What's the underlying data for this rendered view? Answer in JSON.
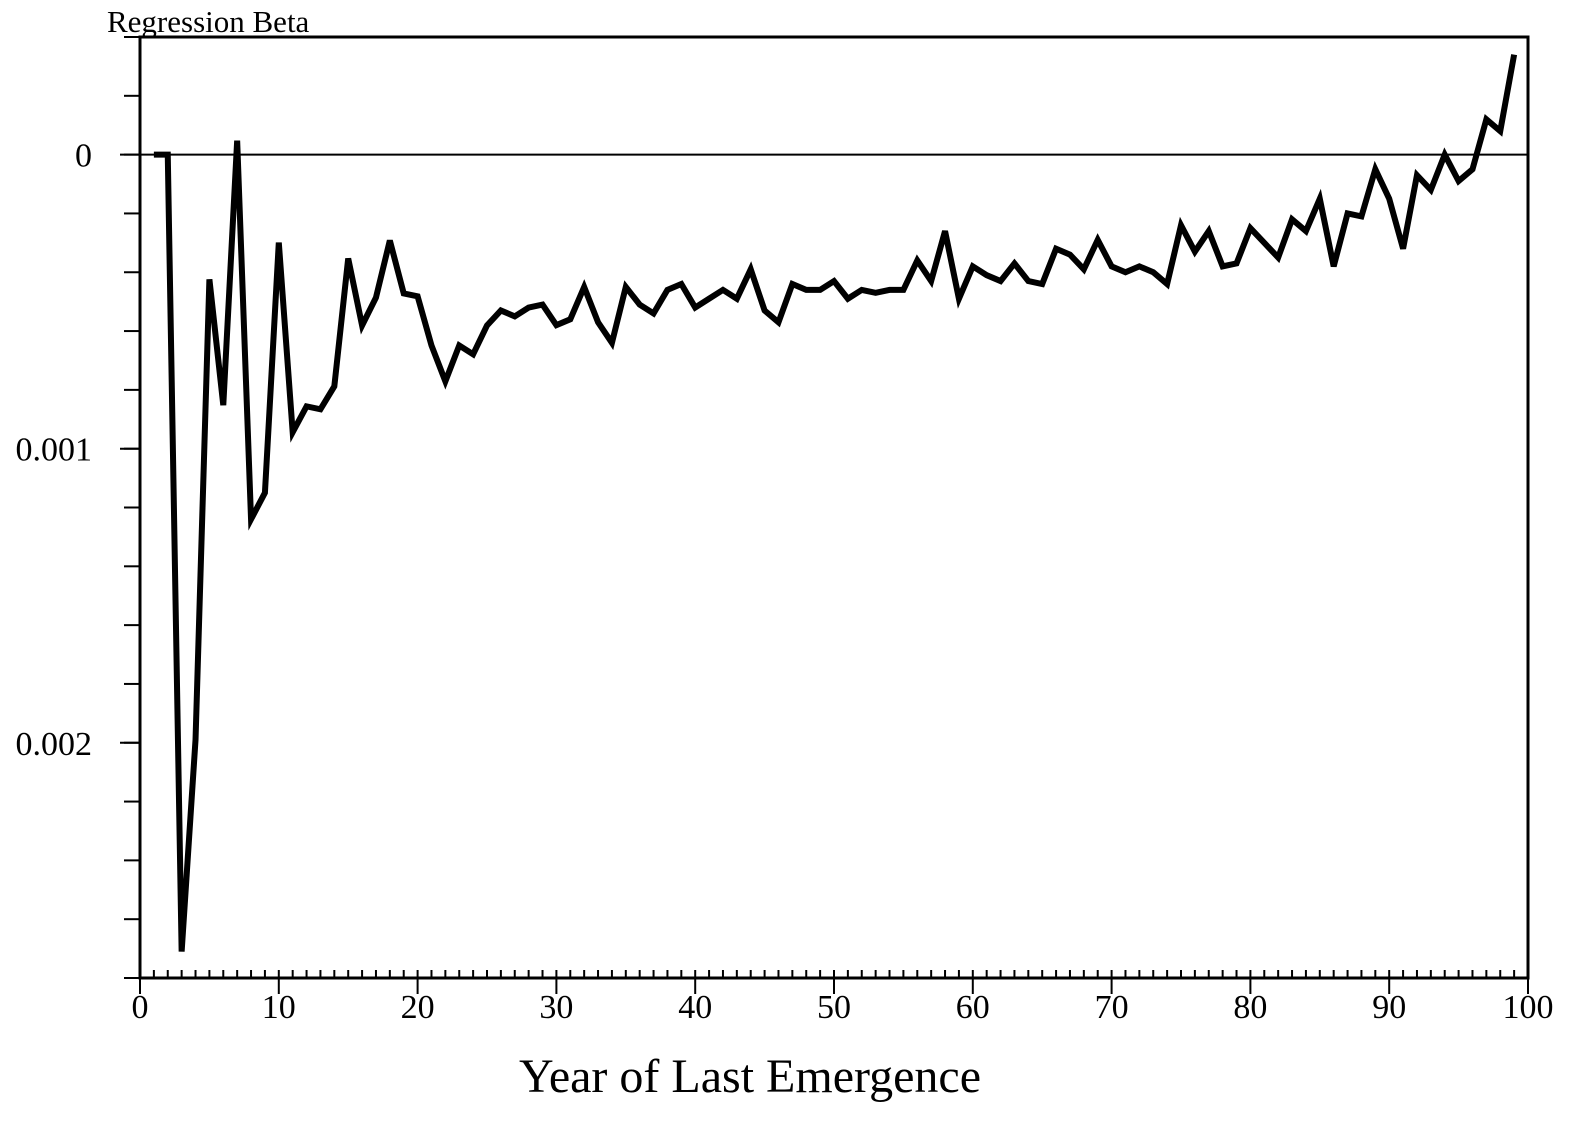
{
  "chart_data": {
    "type": "line",
    "y_axis_label": "Regression Beta",
    "x_axis_label": "Year of Last Emergence",
    "x": [
      1,
      2,
      3,
      4,
      5,
      6,
      7,
      8,
      9,
      10,
      11,
      12,
      13,
      14,
      15,
      16,
      17,
      18,
      19,
      20,
      21,
      22,
      23,
      24,
      25,
      26,
      27,
      28,
      29,
      30,
      31,
      32,
      33,
      34,
      35,
      36,
      37,
      38,
      39,
      40,
      41,
      42,
      43,
      44,
      45,
      46,
      47,
      48,
      49,
      50,
      51,
      52,
      53,
      54,
      55,
      56,
      57,
      58,
      59,
      60,
      61,
      62,
      63,
      64,
      65,
      66,
      67,
      68,
      69,
      70,
      71,
      72,
      73,
      74,
      75,
      76,
      77,
      78,
      79,
      80,
      81,
      82,
      83,
      84,
      85,
      86,
      87,
      88,
      89,
      90,
      91,
      92,
      93,
      94,
      95,
      96,
      97,
      98,
      99
    ],
    "series": [
      {
        "name": "Regression Beta",
        "color": "#000000",
        "values": [
          0,
          0,
          0.00271,
          0.00199,
          0.000424,
          0.000852,
          -4.75e-05,
          0.00124,
          0.00115,
          0.000299,
          0.000944,
          0.000856,
          0.000866,
          0.000788,
          0.000353,
          0.000581,
          0.000486,
          0.000292,
          0.000472,
          0.000482,
          0.000649,
          0.000771,
          0.000649,
          0.000679,
          0.000581,
          0.00053,
          0.00055,
          0.00052,
          0.00051,
          0.00058,
          0.00056,
          0.00045,
          0.00057,
          0.00064,
          0.00045,
          0.00051,
          0.00054,
          0.00046,
          0.00044,
          0.00052,
          0.00049,
          0.00046,
          0.00049,
          0.00039,
          0.00053,
          0.00057,
          0.00044,
          0.00046,
          0.00046,
          0.00043,
          0.00049,
          0.00046,
          0.00047,
          0.00046,
          0.00046,
          0.00036,
          0.00043,
          0.00026,
          0.00049,
          0.00038,
          0.00041,
          0.00043,
          0.00037,
          0.00043,
          0.00044,
          0.00032,
          0.00034,
          0.00039,
          0.00029,
          0.00038,
          0.0004,
          0.00038,
          0.0004,
          0.00044,
          0.00024,
          0.00033,
          0.00026,
          0.00038,
          0.00037,
          0.00025,
          0.0003,
          0.00035,
          0.00022,
          0.00026,
          0.00015,
          0.00038,
          0.0002,
          0.00021,
          5e-05,
          0.00015,
          0.00032,
          7e-05,
          0.00012,
          0,
          9e-05,
          5e-05,
          -0.00012,
          -8e-05,
          -0.00034
        ]
      }
    ],
    "xlim": [
      0,
      100
    ],
    "xticks": [
      0,
      10,
      20,
      30,
      40,
      50,
      60,
      70,
      80,
      90,
      100
    ],
    "xminorticks": [
      0,
      1,
      2,
      3,
      4,
      5,
      6,
      7,
      8,
      9,
      10,
      11,
      12,
      13,
      14,
      15,
      16,
      17,
      18,
      19,
      20,
      21,
      22,
      23,
      24,
      25,
      26,
      27,
      28,
      29,
      30,
      31,
      32,
      33,
      34,
      35,
      36,
      37,
      38,
      39,
      40,
      41,
      42,
      43,
      44,
      45,
      46,
      47,
      48,
      49,
      50,
      51,
      52,
      53,
      54,
      55,
      56,
      57,
      58,
      59,
      60,
      61,
      62,
      63,
      64,
      65,
      66,
      67,
      68,
      69,
      70,
      71,
      72,
      73,
      74,
      75,
      76,
      77,
      78,
      79,
      80,
      81,
      82,
      83,
      84,
      85,
      86,
      87,
      88,
      89,
      90,
      91,
      92,
      93,
      94,
      95,
      96,
      97,
      98,
      99,
      100
    ],
    "ylim": [
      -0.0004,
      0.0028
    ],
    "y_reversed": true,
    "yticks": [
      0,
      0.001,
      0.002
    ],
    "yminorticks": [
      -0.0004,
      -0.0002,
      0,
      0.0002,
      0.0004,
      0.0006,
      0.0008,
      0.001,
      0.0012,
      0.0014,
      0.0016,
      0.0018,
      0.002,
      0.0022,
      0.0024,
      0.0026,
      0.0028
    ],
    "zero_line": true,
    "grid": false
  }
}
